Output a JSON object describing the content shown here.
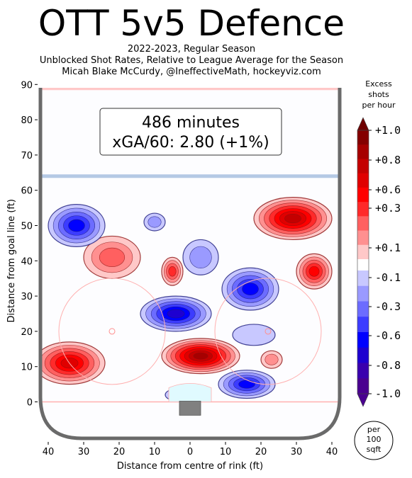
{
  "title": "OTT 5v5 Defence",
  "subtitle_lines": [
    "2022-2023, Regular Season",
    "Unblocked Shot Rates, Relative to League Average for the Season",
    "Micah Blake McCurdy, @IneffectiveMath, hockeyviz.com"
  ],
  "chart_data": {
    "type": "heatmap",
    "xlabel": "Distance from centre of rink (ft)",
    "ylabel": "Distance from goal line (ft)",
    "xlim": [
      -42,
      42
    ],
    "ylim": [
      -11,
      90
    ],
    "x_ticks": [
      -40,
      -30,
      -20,
      -10,
      0,
      10,
      20,
      30,
      40
    ],
    "x_tick_labels": [
      "40",
      "30",
      "20",
      "10",
      "0",
      "10",
      "20",
      "30",
      "40"
    ],
    "y_ticks": [
      0,
      10,
      20,
      30,
      40,
      50,
      60,
      70,
      80,
      90
    ],
    "y_tick_labels": [
      "0",
      "10",
      "20",
      "30",
      "40",
      "50",
      "60",
      "70",
      "80",
      "90"
    ],
    "annotation_lines": [
      "486 minutes",
      "xGA/60: 2.80 (+1%)"
    ],
    "colorbar": {
      "title_lines": [
        "Excess",
        "shots",
        "per hour"
      ],
      "tick_labels": [
        "+1.0",
        "+0.8",
        "+0.6",
        "+0.3",
        "+0.1",
        "-0.1",
        "-0.3",
        "-0.6",
        "-0.8",
        "-1.0"
      ],
      "tick_values": [
        1.0,
        0.8,
        0.6,
        0.3,
        0.1,
        -0.1,
        -0.3,
        -0.6,
        -0.8,
        -1.0
      ],
      "unit_lines": [
        "per",
        "100",
        "sqft"
      ]
    },
    "blobs": [
      {
        "x": -34,
        "y": 11,
        "rx": 10,
        "ry": 6,
        "value": 0.7
      },
      {
        "x": -22,
        "y": 41,
        "rx": 8,
        "ry": 6,
        "value": 0.4
      },
      {
        "x": -5,
        "y": 37,
        "rx": 3,
        "ry": 4,
        "value": 0.5
      },
      {
        "x": 3,
        "y": 13,
        "rx": 11,
        "ry": 5,
        "value": 1.0
      },
      {
        "x": 29,
        "y": 52,
        "rx": 11,
        "ry": 6,
        "value": 0.9
      },
      {
        "x": 35,
        "y": 37,
        "rx": 5,
        "ry": 5,
        "value": 0.6
      },
      {
        "x": 23,
        "y": 12,
        "rx": 3,
        "ry": 2.5,
        "value": 0.2
      },
      {
        "x": -32,
        "y": 50,
        "rx": 8,
        "ry": 6,
        "value": -0.6
      },
      {
        "x": -10,
        "y": 51,
        "rx": 3,
        "ry": 2.5,
        "value": -0.3
      },
      {
        "x": -4,
        "y": 25,
        "rx": 10,
        "ry": 5,
        "value": -0.8
      },
      {
        "x": 17,
        "y": 32,
        "rx": 8,
        "ry": 6,
        "value": -0.6
      },
      {
        "x": 16,
        "y": 5,
        "rx": 8,
        "ry": 4,
        "value": -0.6
      },
      {
        "x": 3,
        "y": 41,
        "rx": 5,
        "ry": 5,
        "value": -0.2
      },
      {
        "x": 18,
        "y": 19,
        "rx": 6,
        "ry": 3,
        "value": -0.1
      },
      {
        "x": -2,
        "y": 2,
        "rx": 5,
        "ry": 2,
        "value": -0.1
      }
    ]
  },
  "colors": {
    "positive": [
      "#ffc8c8",
      "#ff9090",
      "#ff6060",
      "#ff2a2a",
      "#ff0000",
      "#e00000",
      "#c40000",
      "#a60000",
      "#840000"
    ],
    "negative": [
      "#c8c8ff",
      "#9a9aff",
      "#6c6cff",
      "#3c3cff",
      "#0000ff",
      "#1e00d0",
      "#3a00ae",
      "#4a0090"
    ],
    "boards": "#6a6a6a",
    "goal_line": "#ffb0b0",
    "blue_line": "#a8c0e0"
  }
}
